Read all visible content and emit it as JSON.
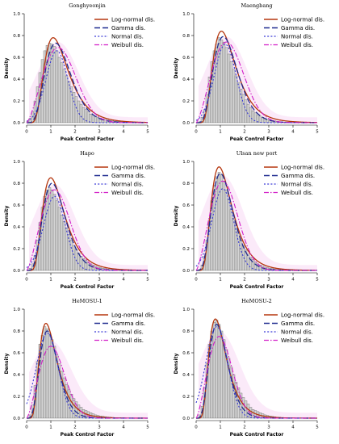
{
  "chart_data": [
    {
      "type": "histogram",
      "title": "Gonghyeonjin",
      "xlabel": "Peak Control Factor",
      "ylabel": "Density",
      "xlim": [
        0,
        5
      ],
      "ylim": [
        0,
        1.0
      ],
      "xticks": [
        "0",
        "1",
        "2",
        "3",
        "4",
        "5"
      ],
      "yticks": [
        "0.0",
        "0.2",
        "0.4",
        "0.6",
        "0.8",
        "1.0"
      ],
      "legend_position": "top-right",
      "bins": {
        "start": 0.0,
        "width": 0.1,
        "density": [
          0.01,
          0.04,
          0.1,
          0.2,
          0.33,
          0.46,
          0.58,
          0.66,
          0.71,
          0.73,
          0.72,
          0.7,
          0.66,
          0.6,
          0.55,
          0.49,
          0.43,
          0.38,
          0.33,
          0.28,
          0.24,
          0.2,
          0.17,
          0.14,
          0.12,
          0.1,
          0.08,
          0.07,
          0.06,
          0.05,
          0.04,
          0.035,
          0.03,
          0.025,
          0.02,
          0.017,
          0.014,
          0.012,
          0.01,
          0.008,
          0.007,
          0.006,
          0.005,
          0.004,
          0.004,
          0.003,
          0.003,
          0.002,
          0.002,
          0.002
        ]
      },
      "series": [
        {
          "name": "Log-normal dis.",
          "peak_x": 1.1,
          "peak_y": 0.78
        },
        {
          "name": "Gamma dis.",
          "peak_x": 1.2,
          "peak_y": 0.73
        },
        {
          "name": "Normal dis.",
          "peak_x": 1.25,
          "peak_y": 0.66
        },
        {
          "name": "Weibull dis.",
          "peak_x": 1.3,
          "peak_y": 0.69
        }
      ]
    },
    {
      "type": "histogram",
      "title": "Maengbang",
      "xlabel": "Peak Control Factor",
      "ylabel": "Density",
      "xlim": [
        0,
        5
      ],
      "ylim": [
        0,
        1.0
      ],
      "xticks": [
        "0",
        "1",
        "2",
        "3",
        "4",
        "5"
      ],
      "yticks": [
        "0.0",
        "0.2",
        "0.4",
        "0.6",
        "0.8",
        "1.0"
      ],
      "legend_position": "top-right",
      "bins": {
        "start": 0.0,
        "width": 0.1,
        "density": [
          0.0,
          0.01,
          0.05,
          0.12,
          0.26,
          0.42,
          0.56,
          0.66,
          0.72,
          0.78,
          0.76,
          0.74,
          0.69,
          0.63,
          0.56,
          0.49,
          0.43,
          0.37,
          0.31,
          0.26,
          0.21,
          0.17,
          0.14,
          0.11,
          0.09,
          0.07,
          0.06,
          0.05,
          0.04,
          0.03,
          0.025,
          0.02,
          0.016,
          0.013,
          0.01,
          0.008,
          0.006,
          0.005,
          0.004,
          0.003,
          0.003,
          0.002,
          0.002,
          0.002,
          0.001,
          0.001,
          0.001,
          0.001,
          0.001,
          0.001
        ]
      },
      "series": [
        {
          "name": "Log-normal dis.",
          "peak_x": 1.05,
          "peak_y": 0.84
        },
        {
          "name": "Gamma dis.",
          "peak_x": 1.12,
          "peak_y": 0.79
        },
        {
          "name": "Normal dis.",
          "peak_x": 1.2,
          "peak_y": 0.72
        },
        {
          "name": "Weibull dis.",
          "peak_x": 1.25,
          "peak_y": 0.74
        }
      ]
    },
    {
      "type": "histogram",
      "title": "Hapo",
      "xlabel": "Peak Control Factor",
      "ylabel": "Density",
      "xlim": [
        0,
        5
      ],
      "ylim": [
        0,
        1.0
      ],
      "xticks": [
        "0",
        "1",
        "2",
        "3",
        "4",
        "5"
      ],
      "yticks": [
        "0.0",
        "0.2",
        "0.4",
        "0.6",
        "0.8",
        "1.0"
      ],
      "legend_position": "top-right",
      "bins": {
        "start": 0.0,
        "width": 0.1,
        "density": [
          0.0,
          0.02,
          0.06,
          0.14,
          0.28,
          0.44,
          0.58,
          0.68,
          0.74,
          0.76,
          0.74,
          0.7,
          0.64,
          0.58,
          0.51,
          0.45,
          0.39,
          0.33,
          0.28,
          0.23,
          0.19,
          0.16,
          0.13,
          0.11,
          0.09,
          0.07,
          0.06,
          0.05,
          0.04,
          0.03,
          0.025,
          0.02,
          0.016,
          0.013,
          0.01,
          0.008,
          0.007,
          0.006,
          0.005,
          0.004,
          0.003,
          0.003,
          0.002,
          0.002,
          0.002,
          0.001,
          0.001,
          0.001,
          0.001,
          0.001
        ]
      },
      "series": [
        {
          "name": "Log-normal dis.",
          "peak_x": 1.0,
          "peak_y": 0.85
        },
        {
          "name": "Gamma dis.",
          "peak_x": 1.05,
          "peak_y": 0.8
        },
        {
          "name": "Normal dis.",
          "peak_x": 1.15,
          "peak_y": 0.68
        },
        {
          "name": "Weibull dis.",
          "peak_x": 1.15,
          "peak_y": 0.74
        }
      ]
    },
    {
      "type": "histogram",
      "title": "Ulsan new port",
      "xlabel": "Peak Control Factor",
      "ylabel": "Density",
      "xlim": [
        0,
        5
      ],
      "ylim": [
        0,
        1.0
      ],
      "xticks": [
        "0",
        "1",
        "2",
        "3",
        "4",
        "5"
      ],
      "yticks": [
        "0.0",
        "0.2",
        "0.4",
        "0.6",
        "0.8",
        "1.0"
      ],
      "legend_position": "top-right",
      "bins": {
        "start": 0.0,
        "width": 0.1,
        "density": [
          0.0,
          0.01,
          0.05,
          0.13,
          0.28,
          0.46,
          0.64,
          0.78,
          0.86,
          0.9,
          0.88,
          0.82,
          0.74,
          0.65,
          0.56,
          0.48,
          0.41,
          0.34,
          0.28,
          0.23,
          0.19,
          0.15,
          0.12,
          0.1,
          0.08,
          0.06,
          0.05,
          0.04,
          0.03,
          0.025,
          0.02,
          0.016,
          0.013,
          0.01,
          0.008,
          0.006,
          0.005,
          0.004,
          0.003,
          0.003,
          0.002,
          0.002,
          0.001,
          0.001,
          0.001,
          0.001,
          0.001,
          0.001,
          0.001,
          0.001
        ]
      },
      "series": [
        {
          "name": "Log-normal dis.",
          "peak_x": 0.95,
          "peak_y": 0.95
        },
        {
          "name": "Gamma dis.",
          "peak_x": 1.0,
          "peak_y": 0.89
        },
        {
          "name": "Normal dis.",
          "peak_x": 1.1,
          "peak_y": 0.75
        },
        {
          "name": "Weibull dis.",
          "peak_x": 1.1,
          "peak_y": 0.82
        }
      ]
    },
    {
      "type": "histogram",
      "title": "HeMOSU-1",
      "xlabel": "Peak Control Factor",
      "ylabel": "Density",
      "xlim": [
        0,
        5
      ],
      "ylim": [
        0,
        1.0
      ],
      "xticks": [
        "0",
        "1",
        "2",
        "3",
        "4",
        "5"
      ],
      "yticks": [
        "0.0",
        "0.2",
        "0.4",
        "0.6",
        "0.8",
        "1.0"
      ],
      "legend_position": "top-right",
      "bins": {
        "start": 0.0,
        "width": 0.1,
        "density": [
          0.0,
          0.03,
          0.12,
          0.3,
          0.52,
          0.68,
          0.76,
          0.84,
          0.82,
          0.78,
          0.72,
          0.66,
          0.58,
          0.5,
          0.43,
          0.37,
          0.31,
          0.26,
          0.22,
          0.18,
          0.15,
          0.12,
          0.1,
          0.08,
          0.07,
          0.06,
          0.05,
          0.04,
          0.03,
          0.025,
          0.02,
          0.017,
          0.014,
          0.011,
          0.009,
          0.007,
          0.006,
          0.005,
          0.004,
          0.003,
          0.003,
          0.002,
          0.002,
          0.002,
          0.001,
          0.001,
          0.001,
          0.001,
          0.001,
          0.001
        ]
      },
      "series": [
        {
          "name": "Log-normal dis.",
          "peak_x": 0.8,
          "peak_y": 0.87
        },
        {
          "name": "Gamma dis.",
          "peak_x": 0.85,
          "peak_y": 0.8
        },
        {
          "name": "Normal dis.",
          "peak_x": 0.85,
          "peak_y": 0.78
        },
        {
          "name": "Weibull dis.",
          "peak_x": 1.0,
          "peak_y": 0.66
        }
      ]
    },
    {
      "type": "histogram",
      "title": "HeMOSU-2",
      "xlabel": "Peak Control Factor",
      "ylabel": "Density",
      "xlim": [
        0,
        5
      ],
      "ylim": [
        0,
        1.0
      ],
      "xticks": [
        "0",
        "1",
        "2",
        "3",
        "4",
        "5"
      ],
      "yticks": [
        "0.0",
        "0.2",
        "0.4",
        "0.6",
        "0.8",
        "1.0"
      ],
      "legend_position": "top-right",
      "bins": {
        "start": 0.0,
        "width": 0.1,
        "density": [
          0.0,
          0.03,
          0.11,
          0.28,
          0.5,
          0.68,
          0.8,
          0.88,
          0.9,
          0.86,
          0.8,
          0.72,
          0.63,
          0.55,
          0.47,
          0.4,
          0.33,
          0.28,
          0.23,
          0.19,
          0.16,
          0.13,
          0.1,
          0.08,
          0.07,
          0.06,
          0.05,
          0.04,
          0.03,
          0.025,
          0.02,
          0.016,
          0.013,
          0.01,
          0.008,
          0.006,
          0.005,
          0.004,
          0.003,
          0.003,
          0.002,
          0.002,
          0.001,
          0.001,
          0.001,
          0.001,
          0.001,
          0.001,
          0.001,
          0.001
        ]
      },
      "series": [
        {
          "name": "Log-normal dis.",
          "peak_x": 0.8,
          "peak_y": 0.91
        },
        {
          "name": "Gamma dis.",
          "peak_x": 0.85,
          "peak_y": 0.86
        },
        {
          "name": "Normal dis.",
          "peak_x": 0.85,
          "peak_y": 0.84
        },
        {
          "name": "Weibull dis.",
          "peak_x": 0.95,
          "peak_y": 0.75
        }
      ]
    }
  ],
  "style": {
    "bar_fill": "#d4d4d4",
    "bar_stroke": "#555555",
    "axis_color": "#000000",
    "series_colors": [
      "#b5360e",
      "#1f2b8f",
      "#3a3ad6",
      "#d21fc8"
    ],
    "series_dashes": [
      "",
      "7,3",
      "2,2.2",
      "6,2,1.5,2"
    ],
    "series_widths": [
      1.3,
      1.3,
      1.1,
      1.1
    ],
    "pink_band": "#f4c3ee"
  }
}
